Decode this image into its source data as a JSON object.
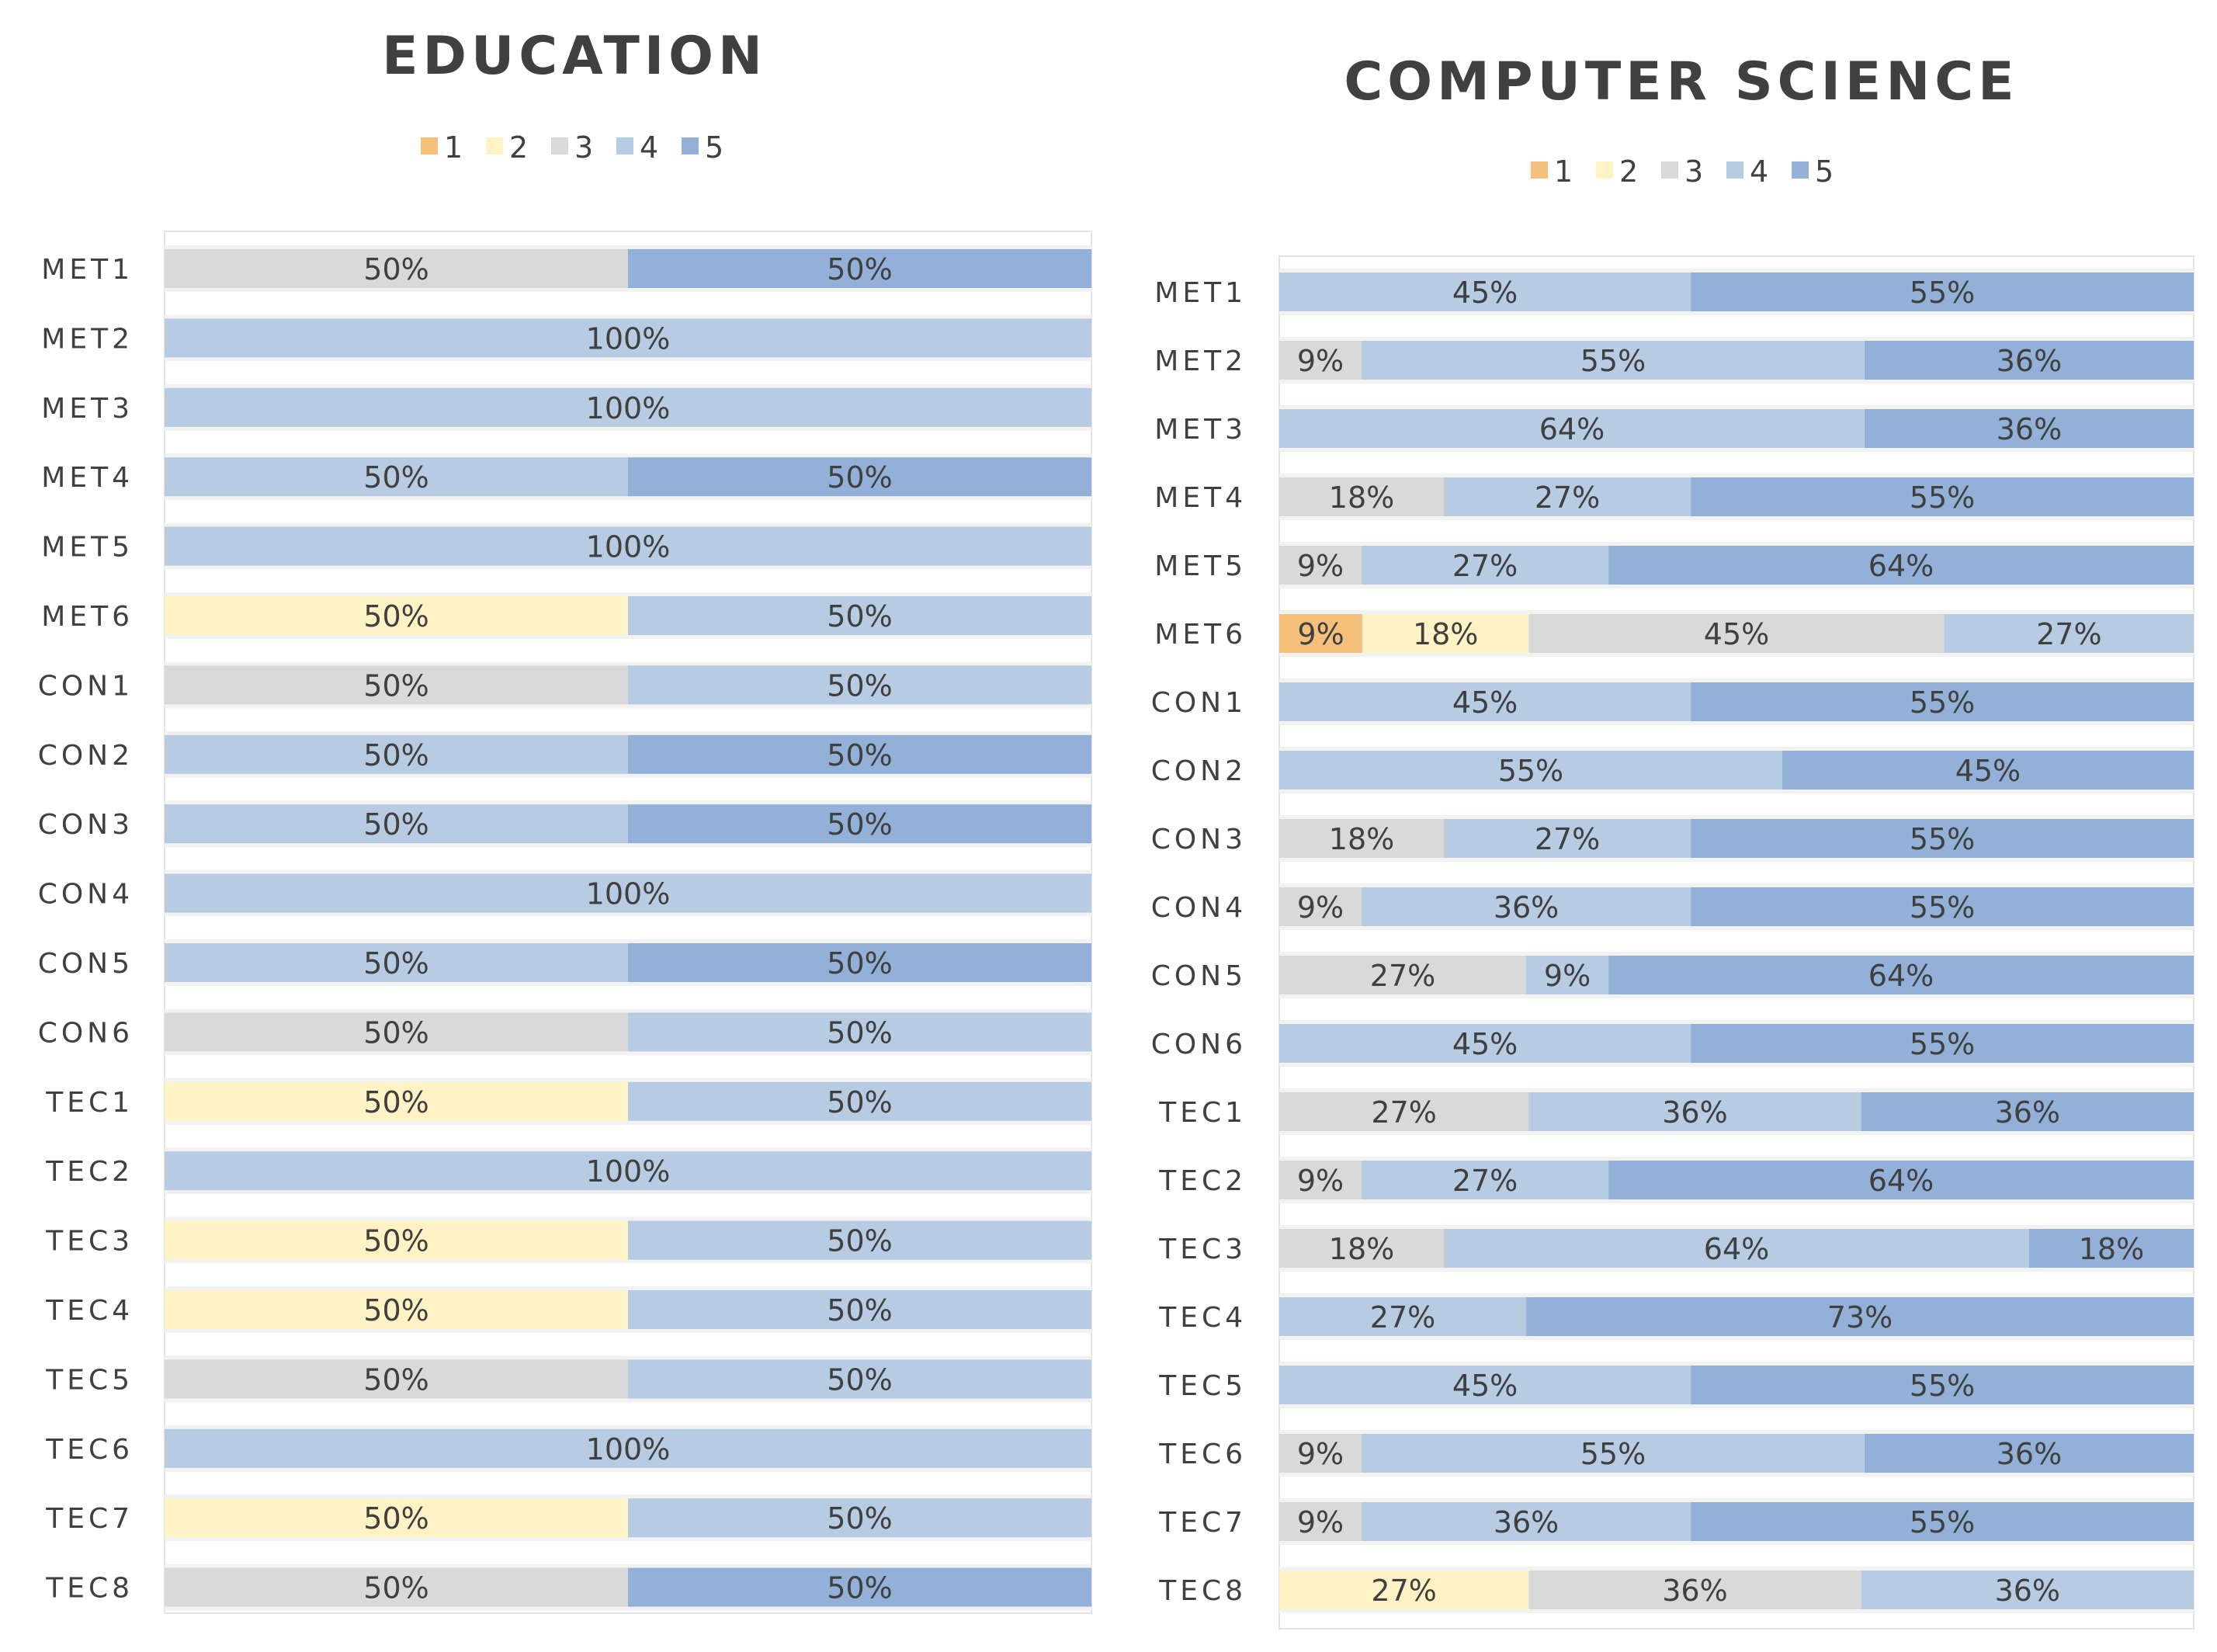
{
  "colors": {
    "1": "#F4C07C",
    "2": "#FFF2C4",
    "3": "#D9D9D9",
    "4": "#B7CBE3",
    "5": "#93B1D8",
    "text": "#404040",
    "row_bg": "#F2F2F2",
    "border": "#E3E3E3"
  },
  "chart_data": [
    {
      "type": "bar",
      "stacked": true,
      "orientation": "horizontal",
      "normalized": true,
      "title": "EDUCATION",
      "legend": [
        "1",
        "2",
        "3",
        "4",
        "5"
      ],
      "legend_position": "top",
      "categories": [
        "MET1",
        "MET2",
        "MET3",
        "MET4",
        "MET5",
        "MET6",
        "CON1",
        "CON2",
        "CON3",
        "CON4",
        "CON5",
        "CON6",
        "TEC1",
        "TEC2",
        "TEC3",
        "TEC4",
        "TEC5",
        "TEC6",
        "TEC7",
        "TEC8"
      ],
      "series": [
        {
          "name": "1",
          "values": [
            0,
            0,
            0,
            0,
            0,
            0,
            0,
            0,
            0,
            0,
            0,
            0,
            0,
            0,
            0,
            0,
            0,
            0,
            0,
            0
          ]
        },
        {
          "name": "2",
          "values": [
            0,
            0,
            0,
            0,
            0,
            50,
            0,
            0,
            0,
            0,
            0,
            0,
            50,
            0,
            50,
            50,
            0,
            0,
            50,
            0
          ]
        },
        {
          "name": "3",
          "values": [
            50,
            0,
            0,
            0,
            0,
            0,
            50,
            0,
            0,
            0,
            0,
            50,
            0,
            0,
            0,
            0,
            50,
            0,
            0,
            50
          ]
        },
        {
          "name": "4",
          "values": [
            0,
            100,
            100,
            50,
            100,
            50,
            50,
            50,
            50,
            100,
            50,
            50,
            50,
            100,
            50,
            50,
            50,
            100,
            50,
            0
          ]
        },
        {
          "name": "5",
          "values": [
            50,
            0,
            0,
            50,
            0,
            0,
            0,
            50,
            50,
            0,
            50,
            0,
            0,
            0,
            0,
            0,
            0,
            0,
            0,
            50
          ]
        }
      ]
    },
    {
      "type": "bar",
      "stacked": true,
      "orientation": "horizontal",
      "normalized": true,
      "title": "COMPUTER SCIENCE",
      "legend": [
        "1",
        "2",
        "3",
        "4",
        "5"
      ],
      "legend_position": "top",
      "categories": [
        "MET1",
        "MET2",
        "MET3",
        "MET4",
        "MET5",
        "MET6",
        "CON1",
        "CON2",
        "CON3",
        "CON4",
        "CON5",
        "CON6",
        "TEC1",
        "TEC2",
        "TEC3",
        "TEC4",
        "TEC5",
        "TEC6",
        "TEC7",
        "TEC8"
      ],
      "series": [
        {
          "name": "1",
          "values": [
            0,
            0,
            0,
            0,
            0,
            9,
            0,
            0,
            0,
            0,
            0,
            0,
            0,
            0,
            0,
            0,
            0,
            0,
            0,
            0
          ]
        },
        {
          "name": "2",
          "values": [
            0,
            0,
            0,
            0,
            0,
            18,
            0,
            0,
            0,
            0,
            0,
            0,
            0,
            0,
            0,
            0,
            0,
            0,
            0,
            27
          ]
        },
        {
          "name": "3",
          "values": [
            0,
            9,
            0,
            18,
            9,
            45,
            0,
            0,
            18,
            9,
            27,
            0,
            27,
            9,
            18,
            0,
            0,
            9,
            9,
            36
          ]
        },
        {
          "name": "4",
          "values": [
            45,
            55,
            64,
            27,
            27,
            27,
            45,
            55,
            27,
            36,
            9,
            45,
            36,
            27,
            64,
            27,
            45,
            55,
            36,
            36
          ]
        },
        {
          "name": "5",
          "values": [
            55,
            36,
            36,
            55,
            64,
            0,
            55,
            45,
            55,
            55,
            64,
            55,
            36,
            64,
            18,
            73,
            55,
            36,
            55,
            0
          ]
        }
      ]
    }
  ]
}
